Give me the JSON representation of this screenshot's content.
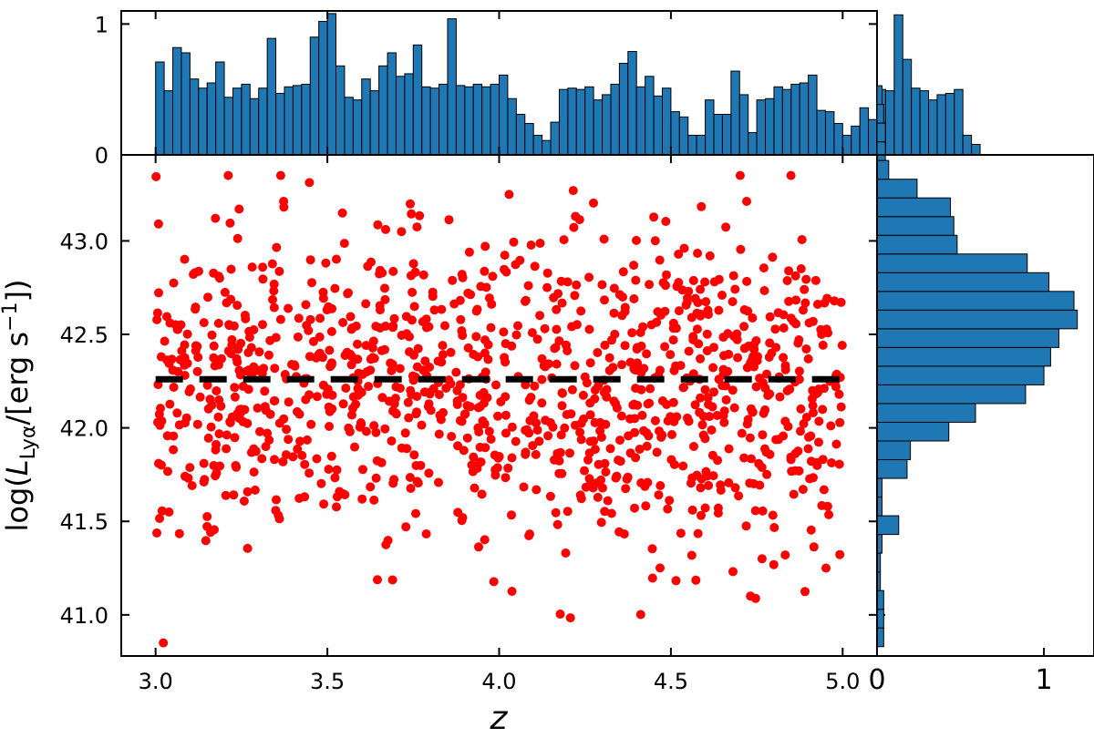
{
  "chart_data": {
    "type": "scatter",
    "xlabel": "z",
    "ylabel": "log(L_Lyα/[erg s⁻¹])",
    "xlim": [
      2.9,
      5.1
    ],
    "ylim": [
      40.78,
      43.46
    ],
    "xticks": [
      "3.0",
      "3.5",
      "4.0",
      "4.5",
      "5.0"
    ],
    "yticks": [
      "41.0",
      "41.5",
      "42.0",
      "42.5",
      "43.0"
    ],
    "top_hist_yticks": [
      "0",
      "1"
    ],
    "right_hist_xticks": [
      "0",
      "1"
    ],
    "grid": false,
    "colors": {
      "points": "#ff0000",
      "bars": "#1f77b4",
      "bar_edge": "#000000",
      "median_line": "#000000"
    },
    "median_line": {
      "y": 42.26,
      "x_range": [
        3.0,
        5.0
      ],
      "style": "dashed"
    },
    "top_histogram": {
      "bin_start": 3.0,
      "bin_width": 0.025,
      "ylim": [
        0,
        1.1
      ],
      "values": [
        0.71,
        0.49,
        0.82,
        0.78,
        0.58,
        0.51,
        0.55,
        0.71,
        0.44,
        0.51,
        0.54,
        0.43,
        0.51,
        0.89,
        0.47,
        0.52,
        0.53,
        0.54,
        0.9,
        1.02,
        1.08,
        0.68,
        0.44,
        0.42,
        0.58,
        0.49,
        0.68,
        0.78,
        0.6,
        0.62,
        0.84,
        0.52,
        0.51,
        0.54,
        1.04,
        0.53,
        0.52,
        0.54,
        0.52,
        0.54,
        0.61,
        0.43,
        0.31,
        0.24,
        0.15,
        0.11,
        0.25,
        0.5,
        0.51,
        0.5,
        0.52,
        0.42,
        0.46,
        0.54,
        0.7,
        0.79,
        0.52,
        0.6,
        0.45,
        0.51,
        0.33,
        0.29,
        0.15,
        0.15,
        0.42,
        0.31,
        0.31,
        0.64,
        0.46,
        0.17,
        0.42,
        0.43,
        0.52,
        0.5,
        0.54,
        0.55,
        0.61,
        0.34,
        0.33,
        0.24,
        0.15,
        0.22,
        0.36,
        0.27,
        0.5,
        0.49,
        1.07,
        0.73,
        0.51,
        0.49,
        0.42,
        0.46,
        0.47,
        0.5,
        0.15,
        0.08
      ]
    },
    "right_histogram": {
      "bin_start": 40.83,
      "bin_width": 0.1,
      "xlim": [
        0,
        1.3
      ],
      "values": [
        0.04,
        0.04,
        0.04,
        0.02,
        0.02,
        0.03,
        0.13,
        0.03,
        0.03,
        0.18,
        0.2,
        0.43,
        0.59,
        0.89,
        1.0,
        1.04,
        1.09,
        1.2,
        1.18,
        1.03,
        0.9,
        0.48,
        0.46,
        0.44,
        0.24,
        0.07,
        0.05,
        0.05,
        0.04,
        0.03
      ]
    },
    "scatter_range": {
      "n_points": 1150,
      "x_range": [
        3.0,
        5.0
      ],
      "y_center": 42.2,
      "y_spread": 0.42,
      "y_range": [
        40.85,
        43.35
      ]
    }
  }
}
